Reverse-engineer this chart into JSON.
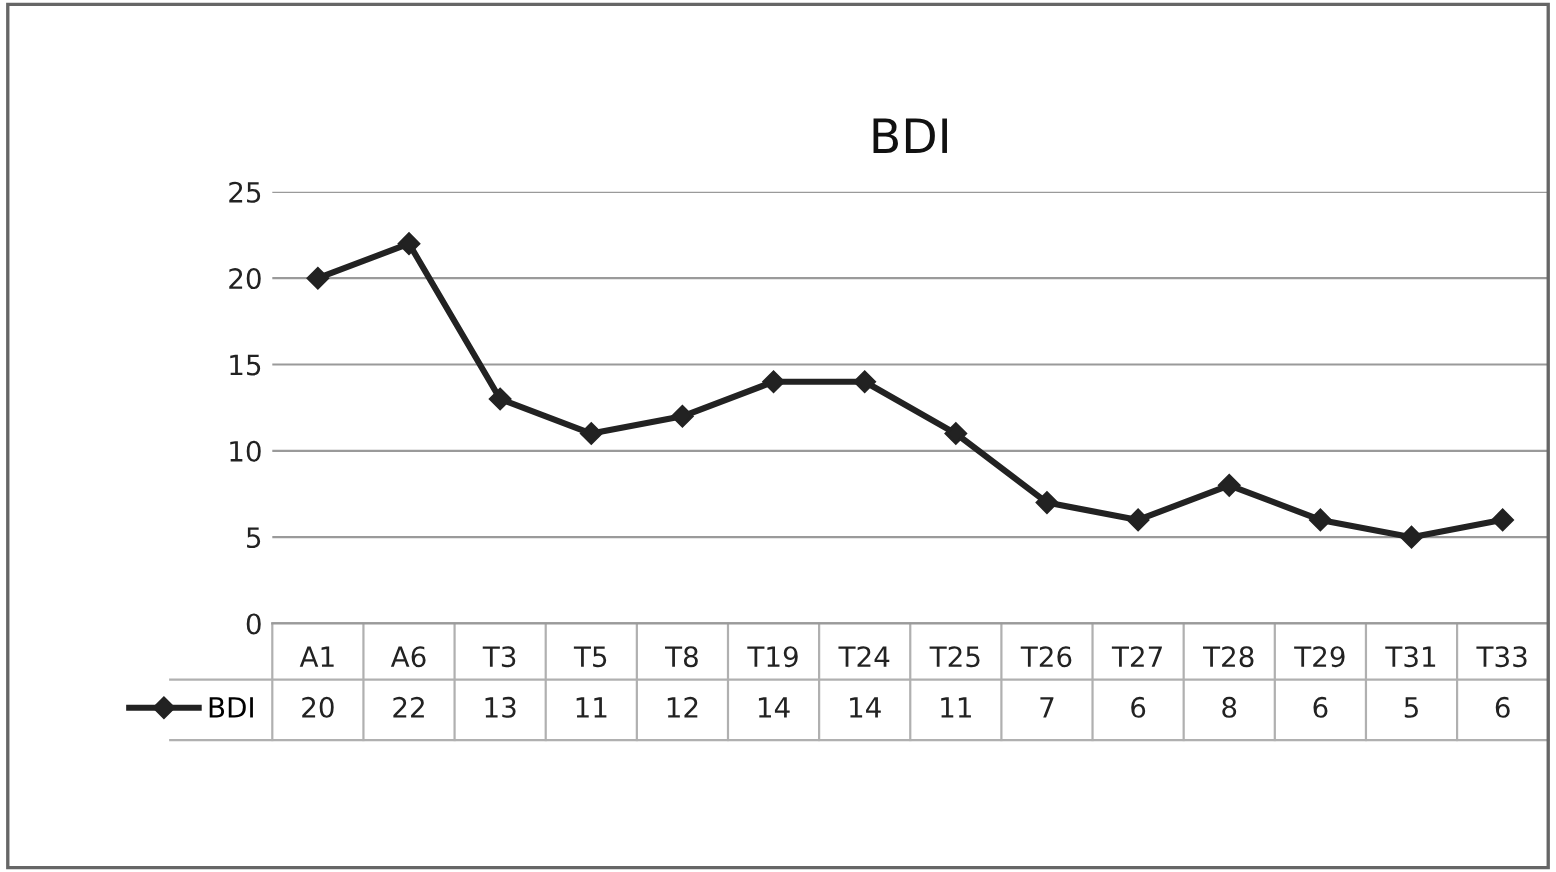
{
  "chart_data": {
    "type": "line",
    "title": "BDI",
    "categories": [
      "A1",
      "A6",
      "T3",
      "T5",
      "T8",
      "T19",
      "T24",
      "T25",
      "T26",
      "T27",
      "T28",
      "T29",
      "T31",
      "T33"
    ],
    "series": [
      {
        "name": "BDI",
        "color": "#222222",
        "values": [
          20,
          22,
          13,
          11,
          12,
          14,
          14,
          11,
          7,
          6,
          8,
          6,
          5,
          6
        ]
      }
    ],
    "ylim": [
      0,
      25
    ],
    "yticks": [
      0,
      5,
      10,
      15,
      20,
      25
    ],
    "grid": "y",
    "marker": "diamond",
    "line_style": "solid",
    "data_labels": true,
    "legend": "bottom left"
  }
}
